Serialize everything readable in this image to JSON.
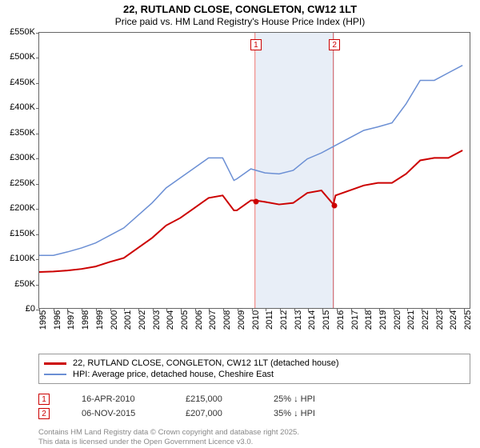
{
  "title_line1": "22, RUTLAND CLOSE, CONGLETON, CW12 1LT",
  "title_line2": "Price paid vs. HM Land Registry's House Price Index (HPI)",
  "chart": {
    "type": "line",
    "background_color": "#ffffff",
    "shaded_band_color": "#e8eef7",
    "x_range": [
      1995,
      2025.5
    ],
    "y_range": [
      0,
      550
    ],
    "y_ticks": [
      0,
      50,
      100,
      150,
      200,
      250,
      300,
      350,
      400,
      450,
      500,
      550
    ],
    "y_tick_labels": [
      "£0",
      "£50K",
      "£100K",
      "£150K",
      "£200K",
      "£250K",
      "£300K",
      "£350K",
      "£400K",
      "£450K",
      "£500K",
      "£550K"
    ],
    "x_ticks": [
      1995,
      1996,
      1997,
      1998,
      1999,
      2000,
      2001,
      2002,
      2003,
      2004,
      2005,
      2006,
      2007,
      2008,
      2009,
      2010,
      2011,
      2012,
      2013,
      2014,
      2015,
      2016,
      2017,
      2018,
      2019,
      2020,
      2021,
      2022,
      2023,
      2024,
      2025
    ],
    "shaded_band": {
      "x_start": 2010.3,
      "x_end": 2015.85
    },
    "series": [
      {
        "name": "price_paid",
        "label": "22, RUTLAND CLOSE, CONGLETON, CW12 1LT (detached house)",
        "color": "#cc0000",
        "line_width": 2,
        "data": [
          [
            1995,
            72
          ],
          [
            1996,
            73
          ],
          [
            1997,
            75
          ],
          [
            1998,
            78
          ],
          [
            1999,
            83
          ],
          [
            2000,
            92
          ],
          [
            2001,
            100
          ],
          [
            2002,
            120
          ],
          [
            2003,
            140
          ],
          [
            2004,
            165
          ],
          [
            2005,
            180
          ],
          [
            2006,
            200
          ],
          [
            2007,
            220
          ],
          [
            2008,
            225
          ],
          [
            2008.8,
            195
          ],
          [
            2009,
            195
          ],
          [
            2010,
            215
          ],
          [
            2010.3,
            215
          ],
          [
            2011,
            212
          ],
          [
            2012,
            207
          ],
          [
            2013,
            210
          ],
          [
            2014,
            230
          ],
          [
            2015,
            235
          ],
          [
            2015.85,
            207
          ],
          [
            2016,
            225
          ],
          [
            2017,
            235
          ],
          [
            2018,
            245
          ],
          [
            2019,
            250
          ],
          [
            2020,
            250
          ],
          [
            2021,
            268
          ],
          [
            2022,
            295
          ],
          [
            2023,
            300
          ],
          [
            2024,
            300
          ],
          [
            2025,
            315
          ]
        ]
      },
      {
        "name": "hpi",
        "label": "HPI: Average price, detached house, Cheshire East",
        "color": "#6b8fd4",
        "line_width": 1.5,
        "data": [
          [
            1995,
            105
          ],
          [
            1996,
            105
          ],
          [
            1997,
            112
          ],
          [
            1998,
            120
          ],
          [
            1999,
            130
          ],
          [
            2000,
            145
          ],
          [
            2001,
            160
          ],
          [
            2002,
            185
          ],
          [
            2003,
            210
          ],
          [
            2004,
            240
          ],
          [
            2005,
            260
          ],
          [
            2006,
            280
          ],
          [
            2007,
            300
          ],
          [
            2008,
            300
          ],
          [
            2008.8,
            255
          ],
          [
            2009,
            258
          ],
          [
            2010,
            278
          ],
          [
            2011,
            270
          ],
          [
            2012,
            268
          ],
          [
            2013,
            275
          ],
          [
            2014,
            298
          ],
          [
            2015,
            310
          ],
          [
            2016,
            325
          ],
          [
            2017,
            340
          ],
          [
            2018,
            355
          ],
          [
            2019,
            362
          ],
          [
            2020,
            370
          ],
          [
            2021,
            408
          ],
          [
            2022,
            455
          ],
          [
            2023,
            455
          ],
          [
            2024,
            470
          ],
          [
            2025,
            485
          ]
        ]
      }
    ],
    "sale_markers": [
      {
        "id": "1",
        "x": 2010.3,
        "y": 215,
        "color": "#cc0000"
      },
      {
        "id": "2",
        "x": 2015.85,
        "y": 207,
        "color": "#cc0000"
      }
    ]
  },
  "legend": {
    "items": [
      {
        "color": "#cc0000",
        "width": 3,
        "text": "22, RUTLAND CLOSE, CONGLETON, CW12 1LT (detached house)"
      },
      {
        "color": "#6b8fd4",
        "width": 2,
        "text": "HPI: Average price, detached house, Cheshire East"
      }
    ]
  },
  "sales": [
    {
      "id": "1",
      "color": "#cc0000",
      "date": "16-APR-2010",
      "price": "£215,000",
      "delta": "25% ↓ HPI"
    },
    {
      "id": "2",
      "color": "#cc0000",
      "date": "06-NOV-2015",
      "price": "£207,000",
      "delta": "35% ↓ HPI"
    }
  ],
  "footer_line1": "Contains HM Land Registry data © Crown copyright and database right 2025.",
  "footer_line2": "This data is licensed under the Open Government Licence v3.0."
}
